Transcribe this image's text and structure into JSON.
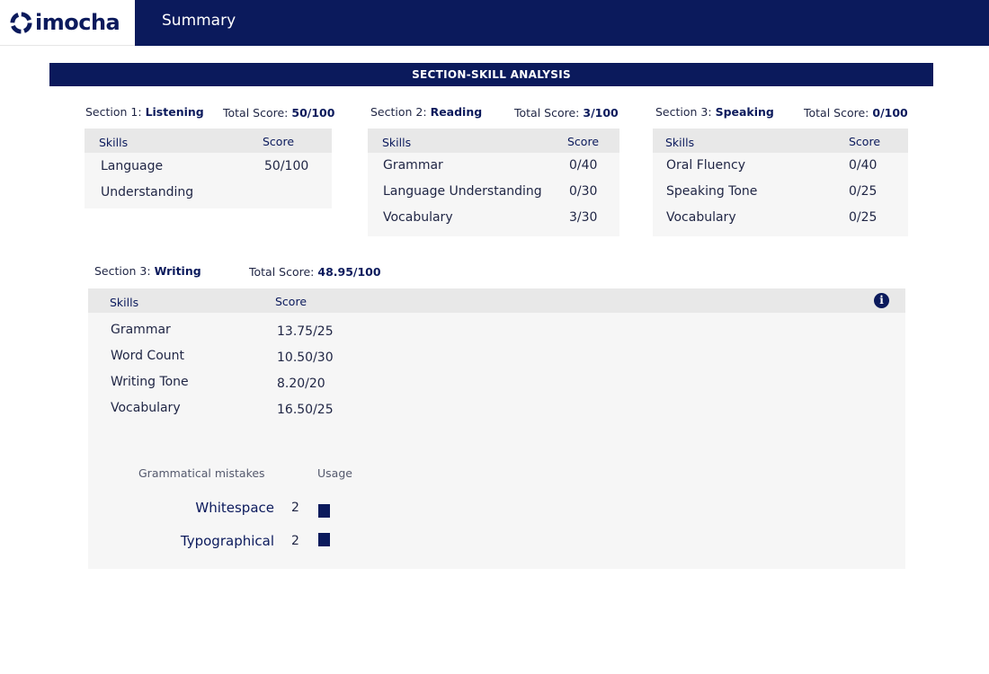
{
  "app": {
    "logo_text": "imocha",
    "page_title": "Summary"
  },
  "banner": "SECTION-SKILL ANALYSIS",
  "sections": [
    {
      "prefix": "Section 1: ",
      "name": "Listening",
      "total_label": "Total Score: ",
      "total": "50/100",
      "skills_header": "Skills",
      "score_header": "Score",
      "rows": [
        {
          "skill": "Language",
          "score": "50/100"
        },
        {
          "skill": "Understanding",
          "score": ""
        }
      ]
    },
    {
      "prefix": "Section 2: ",
      "name": "Reading",
      "total_label": "Total Score: ",
      "total": "3/100",
      "skills_header": "Skills",
      "score_header": "Score",
      "rows": [
        {
          "skill": "Grammar",
          "score": "0/40"
        },
        {
          "skill": "Language Understanding",
          "score": "0/30"
        },
        {
          "skill": "Vocabulary",
          "score": "3/30"
        }
      ]
    },
    {
      "prefix": "Section 3: ",
      "name": "Speaking",
      "total_label": "Total Score: ",
      "total": "0/100",
      "skills_header": "Skills",
      "score_header": "Score",
      "rows": [
        {
          "skill": "Oral Fluency",
          "score": "0/40"
        },
        {
          "skill": "Speaking Tone",
          "score": "0/25"
        },
        {
          "skill": "Vocabulary",
          "score": "0/25"
        }
      ]
    },
    {
      "prefix": "Section 3: ",
      "name": "Writing",
      "total_label": "Total Score: ",
      "total": "48.95/100",
      "skills_header": "Skills",
      "score_header": "Score",
      "rows": [
        {
          "skill": "Grammar",
          "score": "13.75/25"
        },
        {
          "skill": "Word Count",
          "score": "10.50/30"
        },
        {
          "skill": "Writing Tone",
          "score": "8.20/20"
        },
        {
          "skill": "Vocabulary",
          "score": "16.50/25"
        }
      ]
    }
  ],
  "grammar": {
    "mistakes_header": "Grammatical mistakes",
    "usage_header": "Usage",
    "items": [
      {
        "label": "Whitespace",
        "count": "2"
      },
      {
        "label": "Typographical",
        "count": "2"
      }
    ]
  },
  "icons": {
    "logo": "imocha-logo-icon",
    "info": "info-icon"
  },
  "colors": {
    "brand": "#0b1a5c",
    "table_bg": "#f6f6f6",
    "header_bg": "#e8e8e8"
  }
}
